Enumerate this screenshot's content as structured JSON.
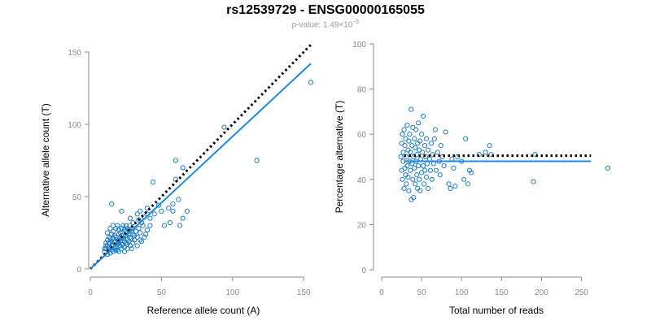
{
  "title": "rs12539729 - ENSG00000165055",
  "subtitle": {
    "prefix": "p-value: 1.49×10",
    "exponent": "−5"
  },
  "colors": {
    "points": "#1f7ec2",
    "fit_line": "#1e88e5",
    "reference_line": "#000000",
    "axis": "#8a8a8a"
  },
  "chart_data": [
    {
      "type": "scatter",
      "xlabel": "Reference allele count (A)",
      "ylabel": "Alternative allele count (T)",
      "xlim": [
        0,
        155
      ],
      "ylim": [
        0,
        150
      ],
      "xticks": [
        0,
        50,
        100,
        150
      ],
      "yticks": [
        0,
        50,
        100,
        150
      ],
      "grid": false,
      "lines": [
        {
          "style": "dotted",
          "color": "#000000",
          "x": [
            0,
            155
          ],
          "y": [
            0,
            155
          ]
        },
        {
          "style": "solid",
          "color": "#1e88e5",
          "x": [
            0,
            155
          ],
          "y": [
            0,
            142
          ]
        }
      ],
      "points": [
        [
          10,
          12
        ],
        [
          11,
          14
        ],
        [
          12,
          16
        ],
        [
          13,
          15
        ],
        [
          14,
          18
        ],
        [
          15,
          13
        ],
        [
          16,
          17
        ],
        [
          17,
          19
        ],
        [
          18,
          15
        ],
        [
          19,
          20
        ],
        [
          20,
          18
        ],
        [
          21,
          22
        ],
        [
          22,
          17
        ],
        [
          23,
          21
        ],
        [
          24,
          19
        ],
        [
          25,
          23
        ],
        [
          26,
          20
        ],
        [
          27,
          24
        ],
        [
          28,
          22
        ],
        [
          29,
          26
        ],
        [
          12,
          20
        ],
        [
          13,
          22
        ],
        [
          15,
          24
        ],
        [
          16,
          26
        ],
        [
          18,
          28
        ],
        [
          19,
          30
        ],
        [
          21,
          25
        ],
        [
          22,
          28
        ],
        [
          24,
          27
        ],
        [
          25,
          30
        ],
        [
          11,
          18
        ],
        [
          12,
          25
        ],
        [
          14,
          28
        ],
        [
          16,
          30
        ],
        [
          18,
          22
        ],
        [
          20,
          27
        ],
        [
          23,
          30
        ],
        [
          26,
          28
        ],
        [
          28,
          30
        ],
        [
          30,
          28
        ],
        [
          12,
          10
        ],
        [
          14,
          11
        ],
        [
          16,
          12
        ],
        [
          18,
          13
        ],
        [
          20,
          12
        ],
        [
          22,
          14
        ],
        [
          24,
          15
        ],
        [
          26,
          14
        ],
        [
          28,
          16
        ],
        [
          30,
          18
        ],
        [
          13,
          13
        ],
        [
          15,
          16
        ],
        [
          17,
          14
        ],
        [
          19,
          17
        ],
        [
          21,
          16
        ],
        [
          23,
          17
        ],
        [
          25,
          18
        ],
        [
          27,
          19
        ],
        [
          29,
          21
        ],
        [
          31,
          20
        ],
        [
          14,
          21
        ],
        [
          17,
          23
        ],
        [
          20,
          24
        ],
        [
          22,
          23
        ],
        [
          25,
          26
        ],
        [
          27,
          27
        ],
        [
          30,
          24
        ],
        [
          32,
          26
        ],
        [
          33,
          22
        ],
        [
          35,
          25
        ],
        [
          11,
          16
        ],
        [
          15,
          19
        ],
        [
          19,
          13
        ],
        [
          24,
          12
        ],
        [
          29,
          14
        ],
        [
          33,
          16
        ],
        [
          36,
          19
        ],
        [
          38,
          22
        ],
        [
          34,
          28
        ],
        [
          37,
          30
        ],
        [
          10,
          14
        ],
        [
          13,
          18
        ],
        [
          16,
          21
        ],
        [
          20,
          20
        ],
        [
          26,
          17
        ],
        [
          31,
          23
        ],
        [
          35,
          20
        ],
        [
          39,
          24
        ],
        [
          40,
          27
        ],
        [
          42,
          30
        ],
        [
          22,
          40
        ],
        [
          15,
          45
        ],
        [
          30,
          32
        ],
        [
          28,
          35
        ],
        [
          33,
          38
        ],
        [
          35,
          40
        ],
        [
          38,
          36
        ],
        [
          40,
          38
        ],
        [
          34,
          34
        ],
        [
          36,
          32
        ],
        [
          40,
          42
        ],
        [
          45,
          38
        ],
        [
          48,
          44
        ],
        [
          42,
          35
        ],
        [
          44,
          60
        ],
        [
          50,
          40
        ],
        [
          55,
          42
        ],
        [
          58,
          45
        ],
        [
          52,
          30
        ],
        [
          56,
          32
        ],
        [
          58,
          40
        ],
        [
          60,
          62
        ],
        [
          62,
          48
        ],
        [
          65,
          70
        ],
        [
          65,
          35
        ],
        [
          60,
          75
        ],
        [
          68,
          40
        ],
        [
          63,
          30
        ],
        [
          94,
          98
        ],
        [
          117,
          75
        ],
        [
          155,
          129
        ]
      ]
    },
    {
      "type": "scatter",
      "xlabel": "Total number of reads",
      "ylabel": "Percentage alternative (T)",
      "xlim": [
        0,
        280
      ],
      "ylim": [
        0,
        100
      ],
      "xticks": [
        0,
        50,
        100,
        150,
        200,
        250
      ],
      "yticks": [
        0,
        20,
        40,
        60,
        80,
        100
      ],
      "grid": false,
      "lines": [
        {
          "style": "dotted",
          "color": "#000000",
          "x": [
            28,
            262
          ],
          "y": [
            50.5,
            50.5
          ]
        },
        {
          "style": "solid",
          "color": "#1e88e5",
          "x": [
            28,
            262
          ],
          "y": [
            48,
            48
          ]
        }
      ],
      "points": [
        [
          24,
          50
        ],
        [
          25,
          44
        ],
        [
          25,
          56
        ],
        [
          26,
          40
        ],
        [
          26,
          60
        ],
        [
          27,
          48
        ],
        [
          27,
          52
        ],
        [
          28,
          36
        ],
        [
          28,
          62
        ],
        [
          29,
          45
        ],
        [
          29,
          55
        ],
        [
          30,
          42
        ],
        [
          30,
          58
        ],
        [
          31,
          38
        ],
        [
          31,
          50
        ],
        [
          32,
          64
        ],
        [
          32,
          46
        ],
        [
          33,
          53
        ],
        [
          33,
          41
        ],
        [
          34,
          57
        ],
        [
          34,
          35
        ],
        [
          35,
          48
        ],
        [
          35,
          60
        ],
        [
          36,
          44
        ],
        [
          36,
          52
        ],
        [
          37,
          31
        ],
        [
          37,
          71
        ],
        [
          38,
          47
        ],
        [
          38,
          55
        ],
        [
          39,
          40
        ],
        [
          39,
          63
        ],
        [
          40,
          32
        ],
        [
          40,
          50
        ],
        [
          41,
          45
        ],
        [
          41,
          58
        ],
        [
          42,
          38
        ],
        [
          42,
          54
        ],
        [
          43,
          48
        ],
        [
          43,
          62
        ],
        [
          44,
          42
        ],
        [
          44,
          51
        ],
        [
          45,
          36
        ],
        [
          45,
          56
        ],
        [
          46,
          46
        ],
        [
          46,
          65
        ],
        [
          47,
          40
        ],
        [
          47,
          53
        ],
        [
          48,
          57
        ],
        [
          48,
          35
        ],
        [
          49,
          49
        ],
        [
          50,
          43
        ],
        [
          50,
          60
        ],
        [
          51,
          52
        ],
        [
          52,
          46
        ],
        [
          52,
          68
        ],
        [
          53,
          38
        ],
        [
          54,
          55
        ],
        [
          54,
          44
        ],
        [
          55,
          50
        ],
        [
          56,
          41
        ],
        [
          56,
          58
        ],
        [
          57,
          47
        ],
        [
          58,
          53
        ],
        [
          58,
          36
        ],
        [
          60,
          49
        ],
        [
          61,
          44
        ],
        [
          62,
          56
        ],
        [
          63,
          40
        ],
        [
          64,
          51
        ],
        [
          65,
          47
        ],
        [
          66,
          58
        ],
        [
          67,
          62
        ],
        [
          68,
          44
        ],
        [
          70,
          52
        ],
        [
          72,
          48
        ],
        [
          73,
          42
        ],
        [
          74,
          55
        ],
        [
          76,
          50
        ],
        [
          78,
          46
        ],
        [
          80,
          61
        ],
        [
          84,
          38
        ],
        [
          86,
          36
        ],
        [
          88,
          49
        ],
        [
          90,
          45
        ],
        [
          92,
          37
        ],
        [
          95,
          50
        ],
        [
          100,
          48
        ],
        [
          103,
          40
        ],
        [
          105,
          58
        ],
        [
          108,
          38
        ],
        [
          110,
          44
        ],
        [
          112,
          43
        ],
        [
          122,
          51
        ],
        [
          130,
          52
        ],
        [
          135,
          55
        ],
        [
          137,
          51
        ],
        [
          190,
          39
        ],
        [
          192,
          51
        ],
        [
          283,
          45
        ]
      ]
    }
  ]
}
